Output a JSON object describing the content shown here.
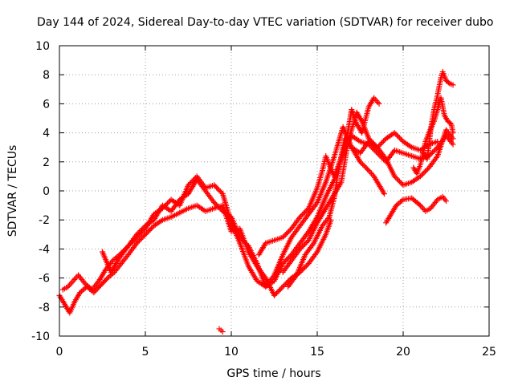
{
  "chart_data": {
    "type": "scatter",
    "title": "Day 144 of 2024, Sidereal Day-to-day VTEC variation (SDTVAR) for receiver dubo",
    "xlabel": "GPS time / hours",
    "ylabel": "SDTVAR / TECUs",
    "xlim": [
      0,
      25
    ],
    "ylim": [
      -10,
      10
    ],
    "xticks": [
      "0",
      "5",
      "10",
      "15",
      "20",
      "25"
    ],
    "yticks": [
      "-10",
      "-8",
      "-6",
      "-4",
      "-2",
      "0",
      "2",
      "4",
      "6",
      "8",
      "10"
    ],
    "grid": true,
    "marker": "+",
    "color": "#ff0000",
    "series": [
      {
        "points": [
          [
            0.0,
            -7.2
          ],
          [
            0.3,
            -7.8
          ],
          [
            0.6,
            -8.4
          ],
          [
            0.9,
            -7.6
          ],
          [
            1.2,
            -7.0
          ],
          [
            1.6,
            -6.6
          ],
          [
            2.0,
            -7.0
          ],
          [
            2.4,
            -6.5
          ],
          [
            2.8,
            -6.0
          ],
          [
            3.2,
            -5.6
          ],
          [
            3.6,
            -5.0
          ],
          [
            4.0,
            -4.4
          ],
          [
            4.5,
            -3.6
          ],
          [
            5.0,
            -3.0
          ],
          [
            5.5,
            -2.4
          ],
          [
            6.0,
            -2.0
          ],
          [
            6.5,
            -1.8
          ],
          [
            7.0,
            -1.5
          ],
          [
            7.5,
            -1.2
          ],
          [
            8.0,
            -1.0
          ],
          [
            8.5,
            -1.4
          ],
          [
            9.0,
            -1.2
          ],
          [
            9.5,
            -1.0
          ],
          [
            10.0,
            -2.8
          ],
          [
            10.5,
            -2.6
          ],
          [
            11.0,
            -4.2
          ],
          [
            11.5,
            -5.2
          ],
          [
            12.0,
            -6.0
          ],
          [
            12.5,
            -7.2
          ],
          [
            13.0,
            -6.6
          ],
          [
            13.5,
            -6.0
          ],
          [
            14.0,
            -5.6
          ],
          [
            14.5,
            -5.0
          ],
          [
            15.0,
            -4.2
          ],
          [
            15.5,
            -3.0
          ],
          [
            15.8,
            -2.0
          ]
        ]
      },
      {
        "points": [
          [
            0.2,
            -6.8
          ],
          [
            0.5,
            -6.6
          ],
          [
            0.8,
            -6.2
          ],
          [
            1.1,
            -5.8
          ],
          [
            1.5,
            -6.4
          ],
          [
            1.9,
            -6.8
          ],
          [
            2.3,
            -6.2
          ],
          [
            2.7,
            -5.4
          ],
          [
            3.1,
            -4.8
          ],
          [
            3.5,
            -4.4
          ],
          [
            4.0,
            -3.8
          ],
          [
            4.5,
            -3.0
          ],
          [
            5.0,
            -2.4
          ],
          [
            5.5,
            -2.0
          ],
          [
            6.0,
            -1.0
          ],
          [
            6.5,
            -1.4
          ],
          [
            7.0,
            -0.6
          ],
          [
            7.5,
            -0.2
          ],
          [
            8.0,
            0.8
          ],
          [
            8.5,
            0.0
          ],
          [
            9.0,
            -0.8
          ],
          [
            9.5,
            -1.4
          ],
          [
            10.0,
            -1.8
          ],
          [
            10.5,
            -3.2
          ],
          [
            11.0,
            -3.8
          ],
          [
            11.5,
            -5.0
          ],
          [
            12.0,
            -6.6
          ],
          [
            12.5,
            -6.2
          ],
          [
            13.0,
            -5.0
          ],
          [
            13.5,
            -4.4
          ],
          [
            14.0,
            -3.6
          ],
          [
            14.5,
            -2.8
          ],
          [
            15.0,
            -1.8
          ],
          [
            15.5,
            -0.4
          ],
          [
            16.0,
            0.8
          ],
          [
            16.5,
            2.6
          ],
          [
            17.0,
            3.8
          ],
          [
            17.5,
            3.4
          ],
          [
            18.0,
            3.2
          ],
          [
            18.5,
            2.6
          ],
          [
            19.0,
            2.0
          ],
          [
            19.5,
            2.8
          ],
          [
            20.0,
            2.6
          ],
          [
            20.5,
            2.4
          ],
          [
            21.0,
            2.2
          ],
          [
            21.5,
            2.4
          ],
          [
            22.0,
            3.0
          ],
          [
            22.5,
            3.8
          ],
          [
            22.9,
            3.2
          ]
        ]
      },
      {
        "points": [
          [
            2.5,
            -4.2
          ],
          [
            3.0,
            -5.6
          ],
          [
            3.5,
            -4.6
          ],
          [
            4.0,
            -3.8
          ],
          [
            4.5,
            -3.2
          ],
          [
            5.0,
            -2.6
          ],
          [
            5.5,
            -1.6
          ],
          [
            6.0,
            -1.2
          ],
          [
            6.5,
            -0.6
          ],
          [
            7.0,
            -1.0
          ],
          [
            7.5,
            0.4
          ],
          [
            8.0,
            1.0
          ],
          [
            8.5,
            0.2
          ],
          [
            9.0,
            0.4
          ],
          [
            9.5,
            -0.2
          ],
          [
            10.0,
            -2.2
          ],
          [
            10.5,
            -3.6
          ],
          [
            11.0,
            -5.2
          ],
          [
            11.5,
            -6.2
          ],
          [
            12.0,
            -6.6
          ],
          [
            12.5,
            -5.8
          ],
          [
            13.0,
            -4.4
          ],
          [
            13.5,
            -3.2
          ],
          [
            14.0,
            -2.4
          ],
          [
            14.5,
            -1.6
          ],
          [
            15.0,
            -0.8
          ],
          [
            15.5,
            0.6
          ],
          [
            16.0,
            2.4
          ],
          [
            16.5,
            4.4
          ],
          [
            17.0,
            3.0
          ],
          [
            17.5,
            2.6
          ],
          [
            18.0,
            3.4
          ],
          [
            18.5,
            3.0
          ],
          [
            19.0,
            2.2
          ],
          [
            19.5,
            1.0
          ],
          [
            20.0,
            0.4
          ],
          [
            20.5,
            0.6
          ],
          [
            21.0,
            1.0
          ],
          [
            21.5,
            1.6
          ],
          [
            22.0,
            2.4
          ],
          [
            22.5,
            4.2
          ],
          [
            22.9,
            3.6
          ]
        ]
      },
      {
        "points": [
          [
            11.6,
            -4.4
          ],
          [
            12.0,
            -3.6
          ],
          [
            12.5,
            -3.4
          ],
          [
            13.0,
            -3.2
          ],
          [
            13.5,
            -2.6
          ],
          [
            14.0,
            -1.8
          ],
          [
            14.5,
            -1.2
          ],
          [
            15.0,
            0.2
          ],
          [
            15.3,
            1.4
          ],
          [
            15.5,
            2.4
          ],
          [
            15.7,
            1.8
          ],
          [
            16.0,
            1.0
          ],
          [
            16.5,
            2.6
          ],
          [
            16.8,
            4.2
          ],
          [
            17.0,
            5.6
          ],
          [
            17.3,
            4.6
          ],
          [
            17.6,
            4.0
          ],
          [
            18.0,
            5.8
          ],
          [
            18.3,
            6.4
          ],
          [
            18.6,
            6.0
          ]
        ]
      },
      {
        "points": [
          [
            13.0,
            -5.6
          ],
          [
            13.5,
            -4.8
          ],
          [
            14.0,
            -4.0
          ],
          [
            14.5,
            -3.4
          ],
          [
            15.0,
            -2.2
          ],
          [
            15.5,
            -1.2
          ],
          [
            16.0,
            -0.2
          ],
          [
            16.4,
            0.6
          ],
          [
            16.8,
            3.4
          ],
          [
            17.0,
            4.2
          ],
          [
            17.3,
            5.4
          ],
          [
            17.6,
            4.8
          ],
          [
            18.0,
            3.6
          ],
          [
            18.5,
            3.0
          ],
          [
            19.0,
            3.6
          ],
          [
            19.5,
            4.0
          ],
          [
            20.0,
            3.4
          ],
          [
            20.5,
            3.0
          ],
          [
            21.0,
            2.8
          ],
          [
            21.5,
            3.2
          ],
          [
            22.0,
            3.4
          ]
        ]
      },
      {
        "points": [
          [
            13.3,
            -6.6
          ],
          [
            13.8,
            -5.8
          ],
          [
            14.3,
            -4.4
          ],
          [
            14.8,
            -3.6
          ],
          [
            15.3,
            -2.4
          ],
          [
            15.7,
            -1.8
          ],
          [
            16.0,
            -0.4
          ],
          [
            16.2,
            1.2
          ],
          [
            16.6,
            3.6
          ],
          [
            17.0,
            3.0
          ],
          [
            17.5,
            2.0
          ],
          [
            18.0,
            1.4
          ],
          [
            18.3,
            1.0
          ],
          [
            18.6,
            0.4
          ],
          [
            18.9,
            -0.2
          ]
        ]
      },
      {
        "points": [
          [
            19.0,
            -2.2
          ],
          [
            19.3,
            -1.6
          ],
          [
            19.6,
            -1.0
          ],
          [
            20.0,
            -0.6
          ],
          [
            20.5,
            -0.5
          ],
          [
            20.8,
            -0.8
          ],
          [
            21.0,
            -1.0
          ],
          [
            21.3,
            -1.4
          ],
          [
            21.6,
            -1.2
          ],
          [
            22.0,
            -0.6
          ],
          [
            22.3,
            -0.4
          ],
          [
            22.5,
            -0.7
          ]
        ]
      },
      {
        "points": [
          [
            21.2,
            2.6
          ],
          [
            21.4,
            2.2
          ],
          [
            21.6,
            4.2
          ],
          [
            21.8,
            5.6
          ],
          [
            22.0,
            6.6
          ],
          [
            22.2,
            7.8
          ],
          [
            22.3,
            8.2
          ],
          [
            22.5,
            7.6
          ],
          [
            22.7,
            7.4
          ],
          [
            22.9,
            7.3
          ]
        ]
      },
      {
        "points": [
          [
            20.6,
            1.6
          ],
          [
            20.8,
            1.2
          ],
          [
            21.0,
            1.8
          ],
          [
            21.3,
            3.4
          ],
          [
            21.5,
            4.0
          ],
          [
            21.8,
            4.8
          ],
          [
            22.0,
            5.6
          ],
          [
            22.2,
            6.4
          ],
          [
            22.4,
            5.2
          ],
          [
            22.6,
            4.8
          ],
          [
            22.8,
            4.6
          ],
          [
            22.9,
            4.0
          ]
        ]
      },
      {
        "points": [
          [
            9.3,
            -9.5
          ],
          [
            9.4,
            -9.6
          ],
          [
            9.5,
            -9.7
          ]
        ]
      }
    ]
  }
}
